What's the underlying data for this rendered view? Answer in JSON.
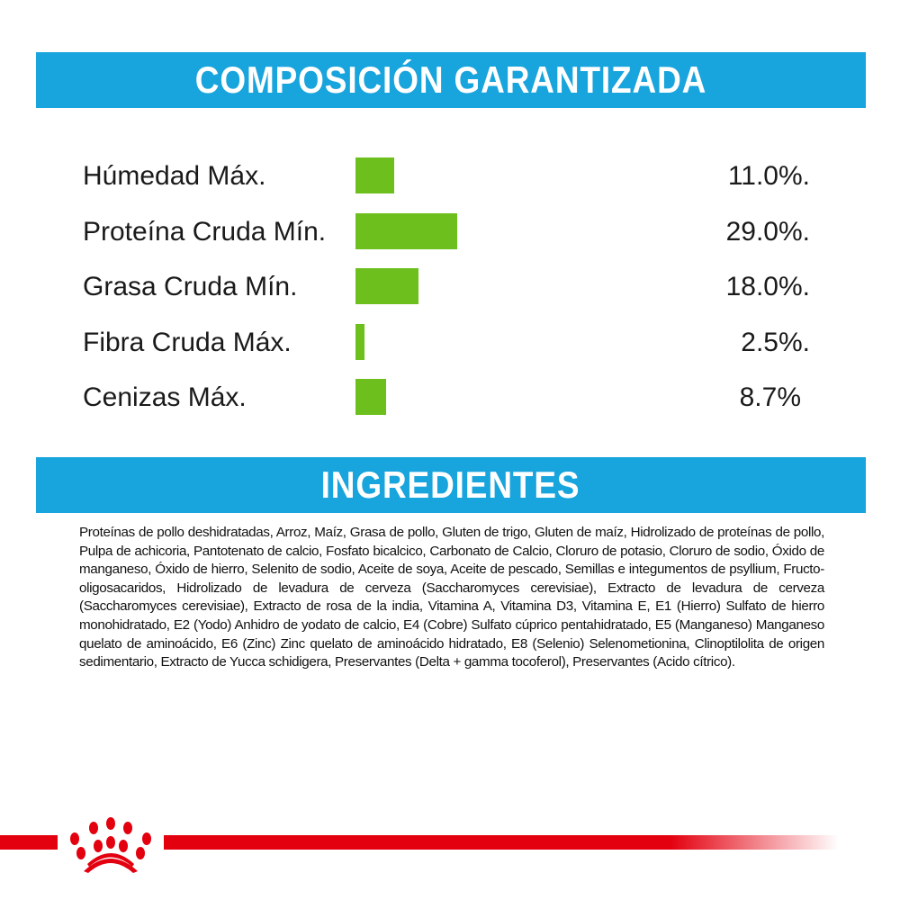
{
  "composition": {
    "title": "COMPOSICIÓN GARANTIZADA",
    "bar_color": "#6cbf1c",
    "items": [
      {
        "label": "Húmedad Máx.",
        "value": "11.0%.",
        "percent": 11.0
      },
      {
        "label": "Proteína Cruda Mín.",
        "value": "29.0%.",
        "percent": 29.0
      },
      {
        "label": "Grasa Cruda Mín.",
        "value": "18.0%.",
        "percent": 18.0
      },
      {
        "label": "Fibra Cruda Máx.",
        "value": "2.5%.",
        "percent": 2.5
      },
      {
        "label": "Cenizas Máx.",
        "value": "8.7%",
        "percent": 8.7
      }
    ]
  },
  "ingredients": {
    "title": "INGREDIENTES",
    "text": "Proteínas de pollo deshidratadas, Arroz, Maíz, Grasa de pollo, Gluten de trigo, Gluten de maíz, Hidrolizado de proteínas de pollo, Pulpa de achicoria, Pantotenato de calcio, Fosfato bicalcico, Carbonato de Calcio, Cloruro de potasio, Cloruro de sodio, Óxido de manganeso, Óxido de hierro, Selenito de sodio, Aceite de soya, Aceite de pescado, Semillas e integumentos de psyllium, Fructo-oligosacaridos, Hidrolizado de levadura de cerveza (Saccharomyces cerevisiae), Extracto de levadura de cerveza (Saccharomyces cerevisiae), Extracto de rosa de la india, Vitamina A, Vitamina D3, Vitamina E, E1 (Hierro) Sulfato de hierro monohidratado, E2 (Yodo) Anhidro de yodato de calcio, E4 (Cobre) Sulfato cúprico pentahidratado, E5 (Manganeso) Manganeso quelato de aminoácido, E6 (Zinc) Zinc quelato de aminoácido hidratado, E8 (Selenio) Selenometionina, Clinoptilolita de origen sedimentario, Extracto de Yucca schidigera, Preservantes (Delta + gamma tocoferol), Preservantes (Acido cítrico)."
  },
  "colors": {
    "header_band": "#18a4dc",
    "brand_red": "#e3000f"
  },
  "logo": {
    "icon": "royal-canin-crown-icon"
  }
}
